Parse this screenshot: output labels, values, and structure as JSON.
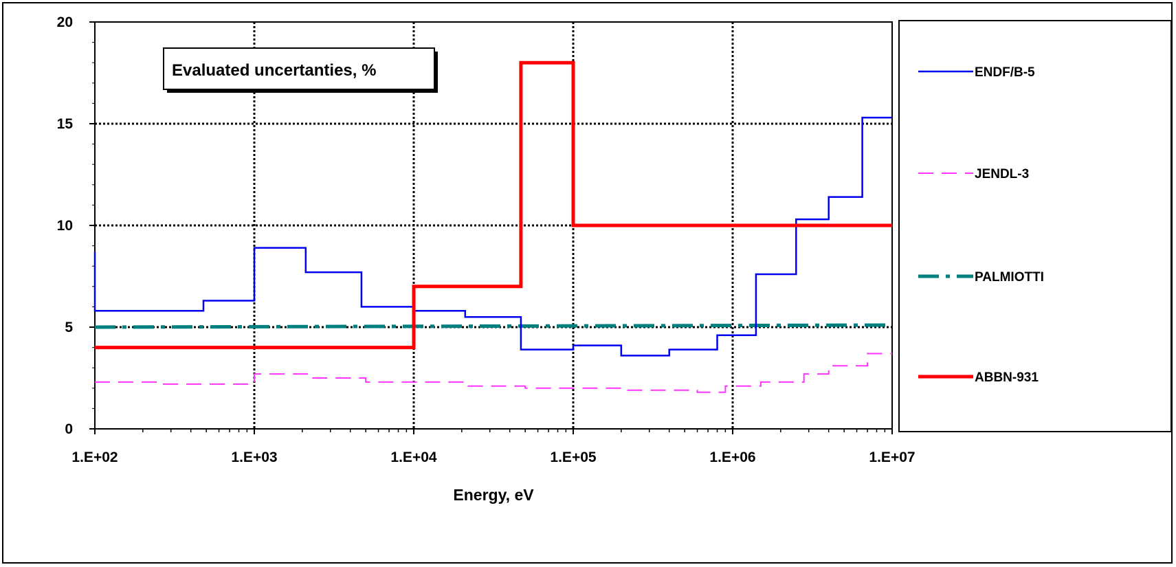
{
  "chart_data": {
    "type": "line",
    "title": "",
    "annotation": "Evaluated uncertanties, %",
    "xlabel": "Energy, eV",
    "ylabel": "",
    "x_scale": "log",
    "xlim": [
      100,
      10000000
    ],
    "ylim": [
      0,
      20
    ],
    "x_ticks": [
      {
        "value": 100,
        "label": "1.E+02"
      },
      {
        "value": 1000,
        "label": "1.E+03"
      },
      {
        "value": 10000,
        "label": "1.E+04"
      },
      {
        "value": 100000,
        "label": "1.E+05"
      },
      {
        "value": 1000000,
        "label": "1.E+06"
      },
      {
        "value": 10000000,
        "label": "1.E+07"
      }
    ],
    "y_ticks": [
      {
        "value": 0,
        "label": "0"
      },
      {
        "value": 5,
        "label": "5"
      },
      {
        "value": 10,
        "label": "10"
      },
      {
        "value": 15,
        "label": "15"
      },
      {
        "value": 20,
        "label": "20"
      }
    ],
    "grid": true,
    "legend_position": "right",
    "series": [
      {
        "name": "ENDF/B-5",
        "color": "#0000ee",
        "style": "solid-thin",
        "x": [
          100,
          100,
          480,
          480,
          1000,
          1000,
          2100,
          2100,
          4700,
          4700,
          10000,
          10000,
          21000,
          21000,
          47000,
          47000,
          100000,
          100000,
          200000,
          200000,
          400000,
          400000,
          800000,
          800000,
          1400000,
          1400000,
          2500000,
          2500000,
          4000000,
          4000000,
          6500000,
          6500000,
          10000000
        ],
        "y": [
          8.7,
          5.8,
          5.8,
          6.3,
          6.3,
          8.9,
          8.9,
          7.7,
          7.7,
          6.0,
          6.0,
          5.8,
          5.8,
          5.5,
          5.5,
          3.9,
          3.9,
          4.1,
          4.1,
          3.6,
          3.6,
          3.9,
          3.9,
          4.6,
          4.6,
          7.6,
          7.6,
          10.3,
          10.3,
          11.4,
          11.4,
          15.3,
          15.3
        ]
      },
      {
        "name": "JENDL-3",
        "color": "#ff33ff",
        "style": "dashed",
        "x": [
          100,
          250,
          250,
          1000,
          1000,
          2300,
          2300,
          5000,
          5000,
          22000,
          22000,
          50000,
          50000,
          200000,
          200000,
          600000,
          600000,
          900000,
          900000,
          1500000,
          1500000,
          2800000,
          2800000,
          4000000,
          4000000,
          7000000,
          7000000,
          10000000
        ],
        "y": [
          2.3,
          2.3,
          2.2,
          2.2,
          2.7,
          2.7,
          2.5,
          2.5,
          2.3,
          2.3,
          2.1,
          2.1,
          2.0,
          2.0,
          1.9,
          1.9,
          1.8,
          1.8,
          2.1,
          2.1,
          2.3,
          2.3,
          2.7,
          2.7,
          3.1,
          3.1,
          3.7,
          3.7
        ]
      },
      {
        "name": "PALMIOTTI",
        "color": "#007f7f",
        "style": "dash-dot-thick",
        "x": [
          100,
          10000000
        ],
        "y": [
          5.0,
          5.1
        ]
      },
      {
        "name": "ABBN-931",
        "color": "#ff0000",
        "style": "solid-thick",
        "x": [
          100,
          10000,
          10000,
          47000,
          47000,
          100000,
          100000,
          10000000
        ],
        "y": [
          4.0,
          4.0,
          7.0,
          7.0,
          18.0,
          18.0,
          10.0,
          10.0
        ]
      }
    ]
  }
}
